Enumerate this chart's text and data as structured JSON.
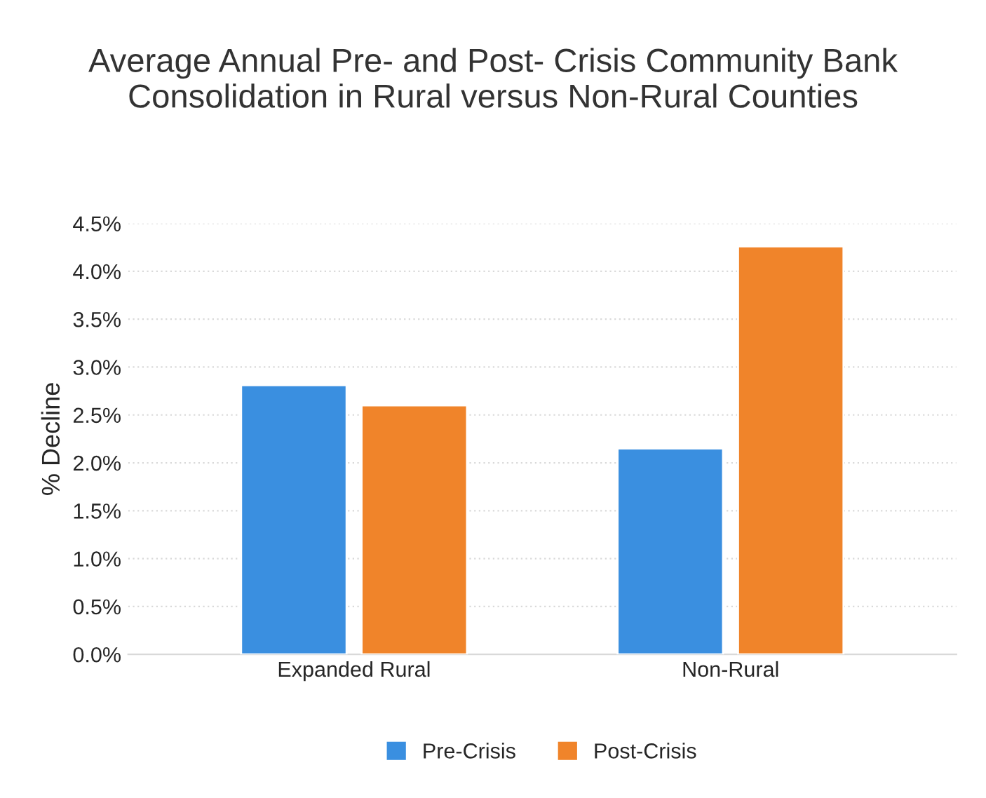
{
  "chart_data": {
    "type": "bar",
    "title": "Average Annual Pre- and Post- Crisis Community Bank\nConsolidation in Rural versus Non-Rural Counties",
    "ylabel": "% Decline",
    "categories": [
      "Expanded Rural",
      "Non-Rural"
    ],
    "series": [
      {
        "name": "Pre-Crisis",
        "color": "#3a8fe0",
        "values": [
          2.81,
          2.15
        ]
      },
      {
        "name": "Post-Crisis",
        "color": "#f0842a",
        "values": [
          2.6,
          4.26
        ]
      }
    ],
    "ylim": [
      0,
      4.5
    ],
    "yticks": [
      {
        "value": 0,
        "label": "0.0%"
      },
      {
        "value": 0.5,
        "label": "0.5%"
      },
      {
        "value": 1,
        "label": "1.0%"
      },
      {
        "value": 1.5,
        "label": "1.5%"
      },
      {
        "value": 2,
        "label": "2.0%"
      },
      {
        "value": 2.5,
        "label": "2.5%"
      },
      {
        "value": 3,
        "label": "3.0%"
      },
      {
        "value": 3.5,
        "label": "3.5%"
      },
      {
        "value": 4,
        "label": "4.0%"
      },
      {
        "value": 4.5,
        "label": "4.5%"
      }
    ],
    "grid": "y",
    "legend": "bottom"
  }
}
